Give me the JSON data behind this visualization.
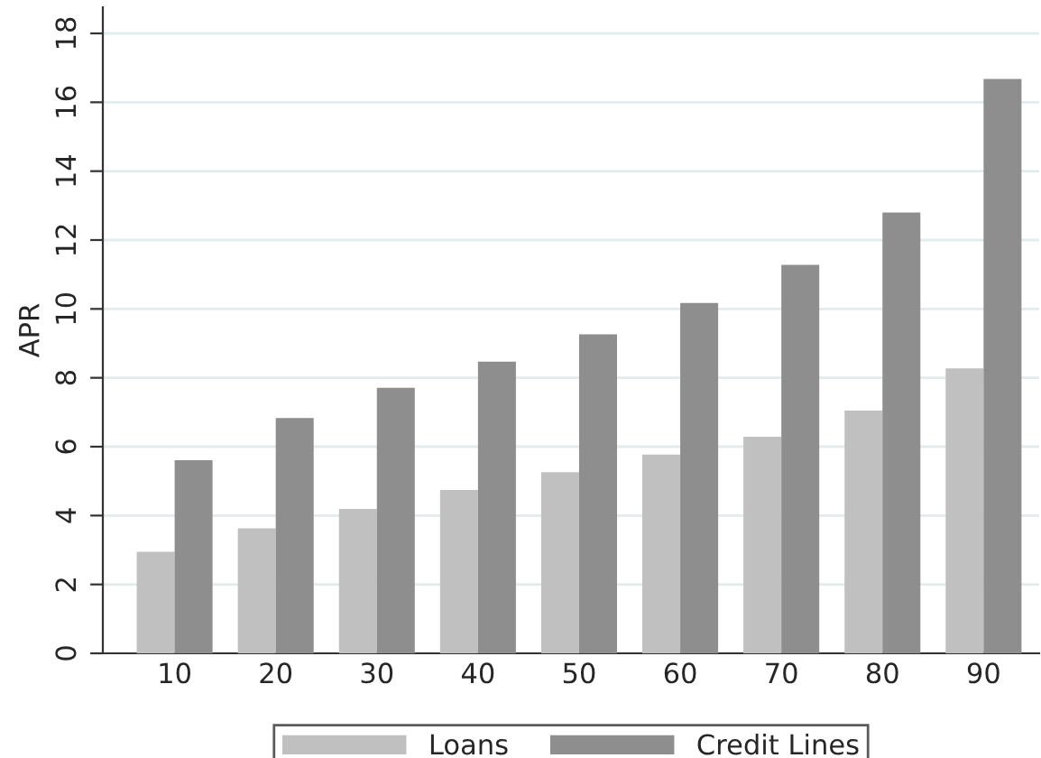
{
  "chart_data": {
    "type": "bar",
    "ylabel": "APR",
    "categories": [
      "10",
      "20",
      "30",
      "40",
      "50",
      "60",
      "70",
      "80",
      "90"
    ],
    "series": [
      {
        "name": "Loans",
        "color": "#c0c0c0",
        "values": [
          2.95,
          3.63,
          4.19,
          4.74,
          5.26,
          5.77,
          6.29,
          7.05,
          8.27
        ]
      },
      {
        "name": "Credit Lines",
        "color": "#8e8e8e",
        "values": [
          5.61,
          6.83,
          7.71,
          8.47,
          9.26,
          10.17,
          11.28,
          12.8,
          16.68
        ]
      }
    ],
    "ylim": [
      0,
      18.76
    ],
    "yticks": [
      0,
      2,
      4,
      6,
      8,
      10,
      12,
      14,
      16,
      18
    ],
    "grid": "y",
    "legend": "bottom"
  }
}
